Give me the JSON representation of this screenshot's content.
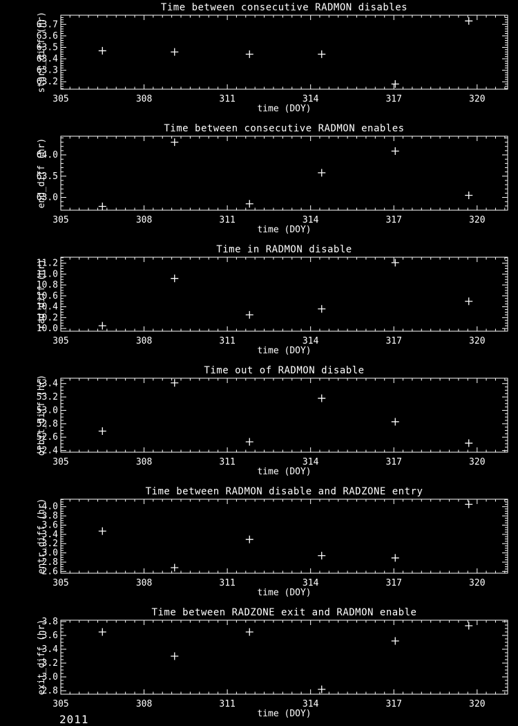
{
  "figure": {
    "background": "#000000",
    "foreground": "#ffffff",
    "year_label": "2011"
  },
  "chart_data": [
    {
      "type": "scatter",
      "marker": "plus",
      "title": "Time between consecutive RADMON disables",
      "xlabel": "time (DOY)",
      "ylabel": "start_diff (hr)",
      "xlim": [
        305,
        321.1
      ],
      "ylim": [
        63.135,
        63.78
      ],
      "x_ticks": [
        305,
        308,
        311,
        314,
        317,
        320
      ],
      "x_minor_step": 0.33333,
      "y_ticks": [
        63.2,
        63.3,
        63.4,
        63.5,
        63.6,
        63.7
      ],
      "y_minor_step": 0.02,
      "x": [
        306.5,
        309.1,
        311.8,
        314.4,
        317.05,
        319.7
      ],
      "y": [
        63.47,
        63.46,
        63.44,
        63.44,
        63.18,
        63.73
      ]
    },
    {
      "type": "scatter",
      "marker": "plus",
      "title": "Time between consecutive RADMON enables",
      "xlabel": "time (DOY)",
      "ylabel": "end_diff (hr)",
      "xlim": [
        305,
        321.1
      ],
      "ylim": [
        62.7,
        64.44
      ],
      "x_ticks": [
        305,
        308,
        311,
        314,
        317,
        320
      ],
      "x_minor_step": 0.33333,
      "y_ticks": [
        63.0,
        63.5,
        64.0
      ],
      "y_minor_step": 0.1,
      "x": [
        306.5,
        309.1,
        311.8,
        314.4,
        317.05,
        319.7
      ],
      "y": [
        62.79,
        64.3,
        62.85,
        63.58,
        64.09,
        63.05
      ]
    },
    {
      "type": "scatter",
      "marker": "plus",
      "title": "Time in RADMON disable",
      "xlabel": "time (DOY)",
      "ylabel": "rad_diff (hr)",
      "xlim": [
        305,
        321.1
      ],
      "ylim": [
        9.95,
        11.31
      ],
      "x_ticks": [
        305,
        308,
        311,
        314,
        317,
        320
      ],
      "x_minor_step": 0.33333,
      "y_ticks": [
        10.0,
        10.2,
        10.4,
        10.6,
        10.8,
        11.0,
        11.2
      ],
      "y_minor_step": 0.05,
      "x": [
        306.5,
        309.1,
        311.8,
        314.4,
        317.05,
        319.7
      ],
      "y": [
        10.05,
        10.92,
        10.25,
        10.36,
        11.21,
        10.5
      ]
    },
    {
      "type": "scatter",
      "marker": "plus",
      "title": "Time out of RADMON disable",
      "xlabel": "time (DOY)",
      "ylabel": "orbit_diff (hr)",
      "xlim": [
        305,
        321.1
      ],
      "ylim": [
        52.375,
        53.48
      ],
      "x_ticks": [
        305,
        308,
        311,
        314,
        317,
        320
      ],
      "x_minor_step": 0.33333,
      "y_ticks": [
        52.4,
        52.6,
        52.8,
        53.0,
        53.2,
        53.4
      ],
      "y_minor_step": 0.05,
      "x": [
        306.5,
        309.1,
        311.8,
        314.4,
        317.05,
        319.7
      ],
      "y": [
        52.69,
        53.41,
        52.53,
        53.18,
        52.83,
        52.51
      ]
    },
    {
      "type": "scatter",
      "marker": "plus",
      "title": "Time between RADMON disable and RADZONE entry",
      "xlabel": "time (DOY)",
      "ylabel": "entr_diff (hr)",
      "xlim": [
        305,
        321.1
      ],
      "ylim": [
        2.56,
        4.16
      ],
      "x_ticks": [
        305,
        308,
        311,
        314,
        317,
        320
      ],
      "x_minor_step": 0.33333,
      "y_ticks": [
        2.6,
        2.8,
        3.0,
        3.2,
        3.4,
        3.6,
        3.8,
        4.0
      ],
      "y_minor_step": 0.05,
      "x": [
        306.5,
        309.1,
        311.8,
        314.4,
        317.05,
        319.7
      ],
      "y": [
        3.47,
        2.68,
        3.29,
        2.94,
        2.89,
        4.05
      ]
    },
    {
      "type": "scatter",
      "marker": "plus",
      "title": "Time between RADZONE exit and RADMON enable",
      "xlabel": "time (DOY)",
      "ylabel": "exit_diff (hr)",
      "xlim": [
        305,
        321.1
      ],
      "ylim": [
        2.75,
        3.82
      ],
      "x_ticks": [
        305,
        308,
        311,
        314,
        317,
        320
      ],
      "x_minor_step": 0.33333,
      "y_ticks": [
        2.8,
        3.0,
        3.2,
        3.4,
        3.6,
        3.8
      ],
      "y_minor_step": 0.05,
      "x": [
        306.5,
        309.1,
        311.8,
        314.4,
        317.05,
        319.7
      ],
      "y": [
        3.65,
        3.3,
        3.65,
        2.82,
        3.52,
        3.74
      ]
    }
  ]
}
